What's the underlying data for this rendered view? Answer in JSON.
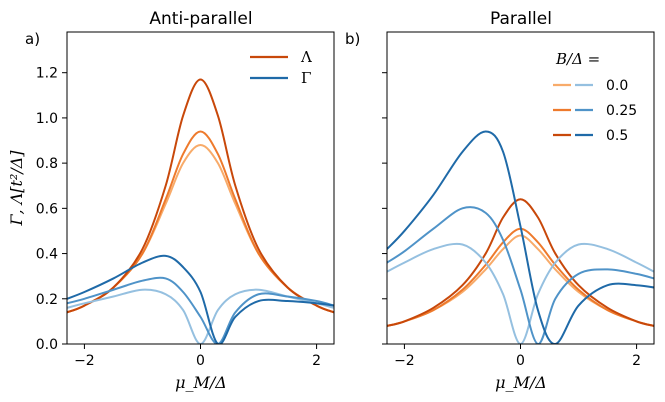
{
  "panels": [
    {
      "tag": "a)",
      "title": "Anti-parallel",
      "xlabel": "μ_M/Δ",
      "ylabel": "Γ, Λ[t²/Δ]",
      "xlim": [
        -2.3,
        2.3
      ],
      "ylim": [
        0.0,
        1.38
      ],
      "xticks": [
        "−2",
        "0",
        "2"
      ],
      "yticks": [
        "0.0",
        "0.2",
        "0.4",
        "0.6",
        "0.8",
        "1.0",
        "1.2"
      ],
      "legend": {
        "lambda_label": "Λ",
        "gamma_label": "Γ",
        "lambda_color": "#c8480a",
        "gamma_color": "#1f6aa8"
      }
    },
    {
      "tag": "b)",
      "title": "Parallel",
      "xlabel": "μ_M/Δ",
      "xlim": [
        -2.3,
        2.3
      ],
      "ylim": [
        0.0,
        1.38
      ],
      "xticks": [
        "−2",
        "0",
        "2"
      ],
      "legend": {
        "title": "B/Δ =",
        "entries": [
          {
            "label": "0.0",
            "orange": "#f8ab6a",
            "blue": "#95c0e0"
          },
          {
            "label": "0.25",
            "orange": "#ee7a2c",
            "blue": "#4f93c8"
          },
          {
            "label": "0.5",
            "orange": "#c8480a",
            "blue": "#1f6aa8"
          }
        ]
      }
    }
  ],
  "chart_data": [
    {
      "type": "line",
      "title": "Anti-parallel",
      "xlabel": "μ_M/Δ",
      "ylabel": "Γ, Λ[t²/Δ]",
      "xlim": [
        -2.3,
        2.3
      ],
      "ylim": [
        0.0,
        1.38
      ],
      "x": [
        -2.3,
        -2.0,
        -1.5,
        -1.0,
        -0.6,
        -0.3,
        0.0,
        0.3,
        0.6,
        1.0,
        1.5,
        2.0,
        2.3
      ],
      "series": [
        {
          "name": "Λ, B/Δ=0.0",
          "color": "#f8ab6a",
          "values": [
            0.14,
            0.17,
            0.25,
            0.4,
            0.62,
            0.8,
            0.88,
            0.8,
            0.62,
            0.4,
            0.25,
            0.17,
            0.14
          ]
        },
        {
          "name": "Λ, B/Δ=0.25",
          "color": "#ee7a2c",
          "values": [
            0.14,
            0.17,
            0.25,
            0.4,
            0.64,
            0.84,
            0.94,
            0.84,
            0.64,
            0.4,
            0.25,
            0.17,
            0.14
          ]
        },
        {
          "name": "Λ, B/Δ=0.5",
          "color": "#c8480a",
          "values": [
            0.14,
            0.17,
            0.25,
            0.42,
            0.7,
            1.01,
            1.17,
            1.01,
            0.7,
            0.42,
            0.25,
            0.17,
            0.14
          ]
        },
        {
          "name": "Γ, B/Δ=0.0",
          "color": "#95c0e0",
          "values": [
            0.16,
            0.18,
            0.21,
            0.24,
            0.22,
            0.15,
            0.0,
            0.15,
            0.22,
            0.24,
            0.21,
            0.18,
            0.16
          ]
        },
        {
          "name": "Γ, B/Δ=0.25",
          "color": "#4f93c8",
          "values": [
            0.18,
            0.2,
            0.24,
            0.28,
            0.29,
            0.23,
            0.12,
            0.0,
            0.14,
            0.22,
            0.21,
            0.19,
            0.17
          ]
        },
        {
          "name": "Γ, B/Δ=0.5",
          "color": "#1f6aa8",
          "values": [
            0.2,
            0.23,
            0.29,
            0.36,
            0.39,
            0.34,
            0.23,
            0.0,
            0.12,
            0.19,
            0.19,
            0.18,
            0.17
          ]
        }
      ]
    },
    {
      "type": "line",
      "title": "Parallel",
      "xlabel": "μ_M/Δ",
      "xlim": [
        -2.3,
        2.3
      ],
      "ylim": [
        0.0,
        1.38
      ],
      "x": [
        -2.3,
        -2.0,
        -1.5,
        -1.0,
        -0.6,
        -0.3,
        0.0,
        0.3,
        0.6,
        1.0,
        1.5,
        2.0,
        2.3
      ],
      "series": [
        {
          "name": "Λ, B/Δ=0.0",
          "color": "#f8ab6a",
          "values": [
            0.08,
            0.1,
            0.15,
            0.23,
            0.33,
            0.42,
            0.48,
            0.42,
            0.33,
            0.23,
            0.15,
            0.1,
            0.08
          ]
        },
        {
          "name": "Λ, B/Δ=0.25",
          "color": "#ee7a2c",
          "values": [
            0.08,
            0.1,
            0.15,
            0.24,
            0.35,
            0.45,
            0.51,
            0.45,
            0.35,
            0.24,
            0.15,
            0.1,
            0.08
          ]
        },
        {
          "name": "Λ, B/Δ=0.5",
          "color": "#c8480a",
          "values": [
            0.08,
            0.1,
            0.16,
            0.26,
            0.4,
            0.56,
            0.64,
            0.56,
            0.4,
            0.26,
            0.16,
            0.1,
            0.08
          ]
        },
        {
          "name": "Γ, B/Δ=0.0",
          "color": "#95c0e0",
          "values": [
            0.32,
            0.36,
            0.42,
            0.44,
            0.36,
            0.22,
            0.0,
            0.22,
            0.36,
            0.44,
            0.42,
            0.36,
            0.32
          ]
        },
        {
          "name": "Γ, B/Δ=0.25",
          "color": "#4f93c8",
          "values": [
            0.36,
            0.41,
            0.51,
            0.6,
            0.58,
            0.46,
            0.24,
            0.0,
            0.2,
            0.31,
            0.33,
            0.31,
            0.29
          ]
        },
        {
          "name": "Γ, B/Δ=0.5",
          "color": "#1f6aa8",
          "values": [
            0.42,
            0.5,
            0.66,
            0.85,
            0.94,
            0.85,
            0.52,
            0.15,
            0.0,
            0.17,
            0.26,
            0.26,
            0.25
          ]
        }
      ]
    }
  ]
}
